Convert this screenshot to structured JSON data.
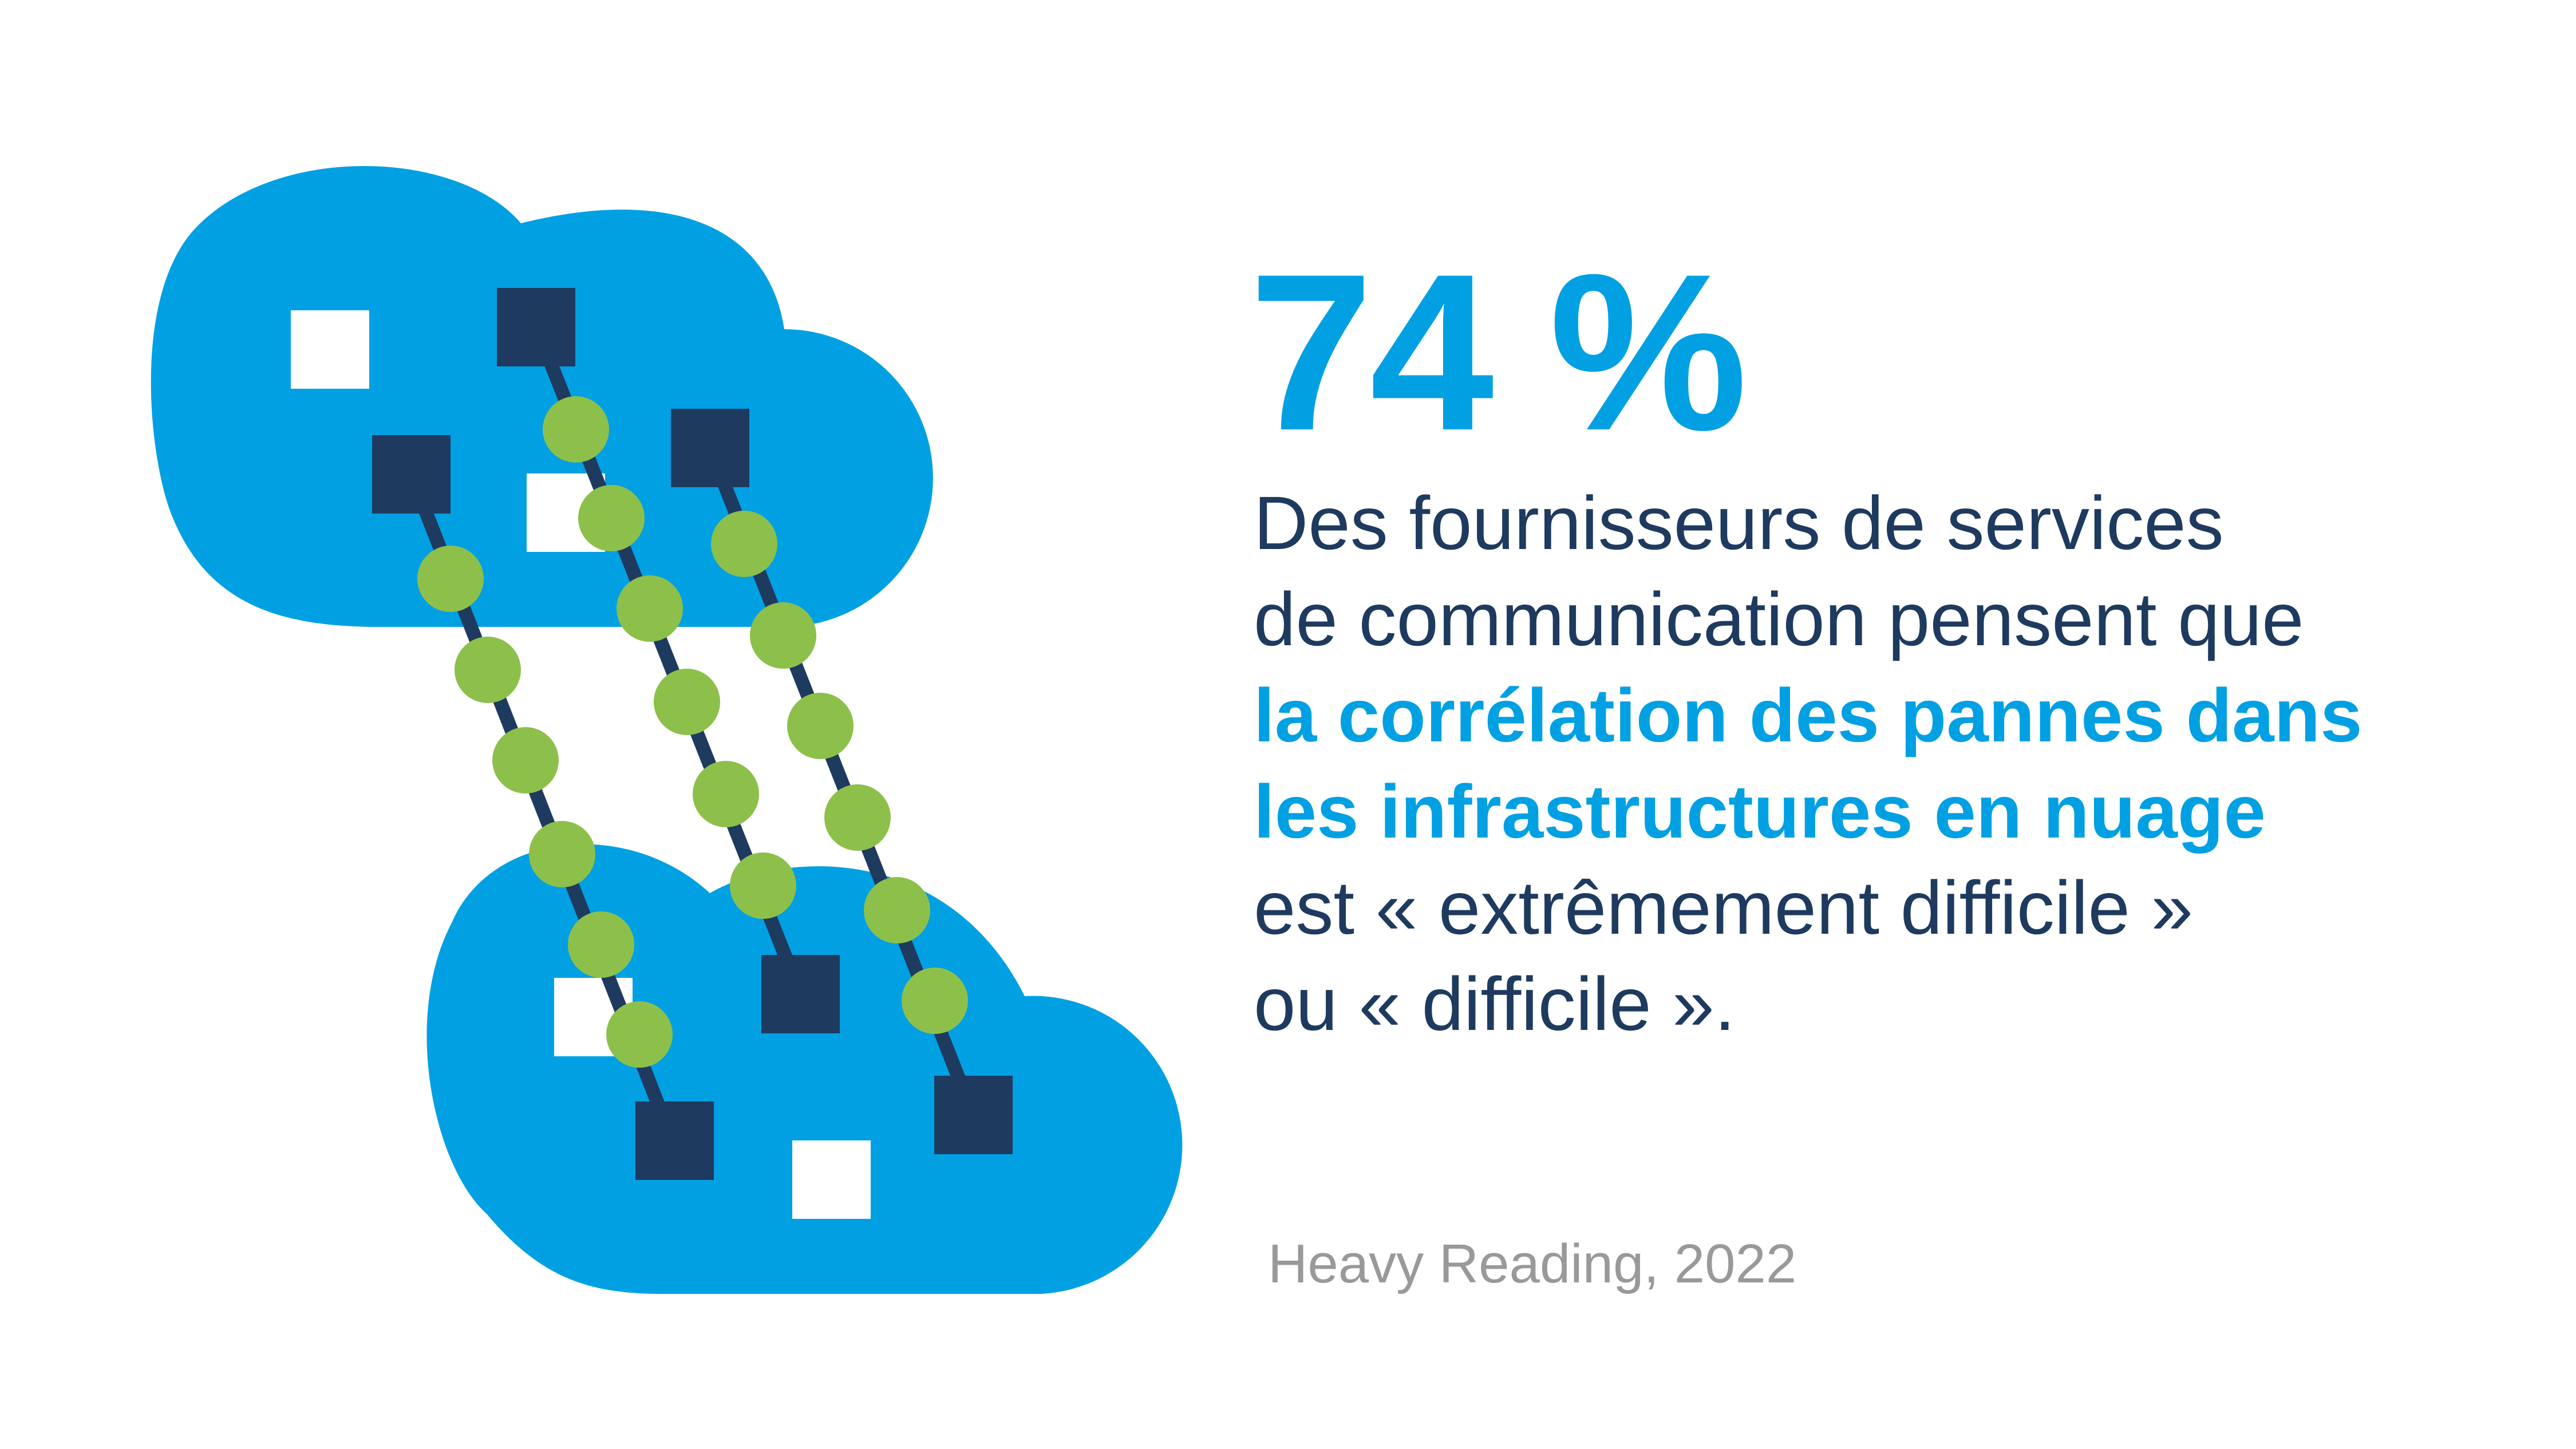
{
  "colors": {
    "background": "#ffffff",
    "accent_blue": "#00a0e3",
    "navy": "#1e3a5f",
    "green": "#8dc04a",
    "white_square": "#ffffff",
    "source_gray": "#999999"
  },
  "statistic": {
    "value": "74 %"
  },
  "description": {
    "line1": "Des fournisseurs de services",
    "line2": "de communication pensent que",
    "line3_highlight": "la corrélation des pannes dans",
    "line4_highlight": "les infrastructures en nuage",
    "line5": "est « extrêmement difficile »",
    "line6": "ou « difficile »."
  },
  "source": {
    "text": "Heavy Reading, 2022"
  },
  "icons": {
    "illustration": "cloud-network-icon"
  }
}
